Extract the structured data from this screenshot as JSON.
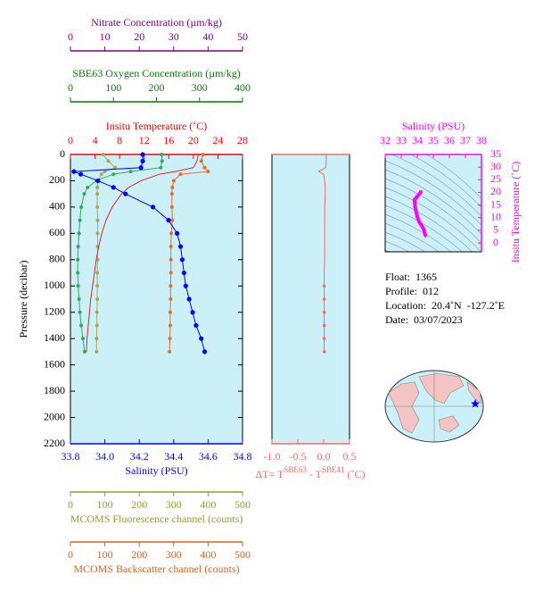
{
  "chart_data": [
    {
      "type": "line",
      "ylabel": "Pressure (decibar)",
      "ylim": [
        0,
        2200
      ],
      "yticks": [
        0,
        200,
        400,
        600,
        800,
        1000,
        1200,
        1400,
        1600,
        1800,
        2000,
        2200
      ],
      "y_reversed": true,
      "background": "#ccf0f8",
      "pressure": [
        0,
        50,
        100,
        130,
        150,
        200,
        250,
        300,
        400,
        500,
        600,
        700,
        800,
        900,
        1000,
        1100,
        1200,
        1300,
        1400,
        1500
      ],
      "x_axes": [
        {
          "label": "Nitrate Concentration (µm/kg)",
          "xlim": [
            0,
            50
          ],
          "xticks": [
            0,
            10,
            20,
            30,
            40,
            50
          ],
          "color": "#800080",
          "position": "top"
        },
        {
          "label": "SBE63 Oxygen Concentration (µm/kg)",
          "xlim": [
            0,
            400
          ],
          "xticks": [
            0,
            100,
            200,
            300,
            400
          ],
          "color": "#008000",
          "position": "top"
        },
        {
          "label": "Insitu Temperature (˚C)",
          "xlim": [
            0,
            28
          ],
          "xticks": [
            0,
            4,
            8,
            12,
            16,
            20,
            24,
            28
          ],
          "color": "#ff0000",
          "position": "top"
        },
        {
          "label": "Salinity (PSU)",
          "xlim": [
            33.8,
            34.8
          ],
          "xticks": [
            33.8,
            {
              "value": 34,
              "label": "34.0"
            },
            34.2,
            34.4,
            34.6,
            34.8
          ],
          "color": "#0000ff",
          "position": "bottom"
        },
        {
          "label": "MCOMS Fluorescence channel (counts)",
          "xlim": [
            0,
            500
          ],
          "xticks": [
            0,
            100,
            200,
            300,
            400,
            500
          ],
          "color": "#999933",
          "position": "bottom"
        },
        {
          "label": "MCOMS Backscatter channel (counts)",
          "xlim": [
            0,
            500
          ],
          "xticks": [
            0,
            100,
            200,
            300,
            400,
            500
          ],
          "color": "#e06020",
          "position": "bottom"
        }
      ],
      "series": [
        {
          "axis": 1,
          "color": "#33aa55",
          "markers": true,
          "values": [
            212,
            213,
            210,
            140,
            100,
            60,
            40,
            32,
            25,
            22,
            20,
            18,
            17,
            17,
            18,
            20,
            22,
            25,
            29,
            33
          ]
        },
        {
          "axis": 4,
          "color": "#aaaa55",
          "markers": true,
          "values": [
            95,
            110,
            130,
            100,
            90,
            80,
            78,
            78,
            78,
            79,
            79,
            79,
            79,
            78,
            78,
            78,
            77,
            77,
            76,
            76
          ]
        },
        {
          "axis": 5,
          "color": "#e07030",
          "markers": true,
          "values": [
            385,
            380,
            390,
            400,
            320,
            300,
            296,
            295,
            295,
            296,
            293,
            292,
            292,
            292,
            291,
            291,
            290,
            290,
            289,
            288
          ]
        },
        {
          "axis": 2,
          "color": "#dd2222",
          "markers": false,
          "values": [
            20.8,
            20.6,
            20,
            17,
            14.5,
            11.5,
            9.5,
            8.3,
            6.8,
            5.8,
            5.1,
            4.6,
            4.2,
            3.9,
            3.6,
            3.3,
            3.1,
            2.9,
            2.7,
            2.6
          ]
        },
        {
          "axis": 3,
          "color": "#0000ff",
          "markers": true,
          "values": [
            34.22,
            34.22,
            34.21,
            33.82,
            33.86,
            33.96,
            34.05,
            34.12,
            34.28,
            34.37,
            34.42,
            34.44,
            34.45,
            34.46,
            34.47,
            34.49,
            34.51,
            34.53,
            34.56,
            34.58
          ]
        }
      ]
    },
    {
      "type": "line",
      "xlabel_parts": [
        "ΔT= T",
        "SBE63",
        " - T",
        "SBE41",
        " (˚C)"
      ],
      "xlim": [
        -1,
        0.5
      ],
      "xticks": [
        {
          "value": -1,
          "label": "-1.0"
        },
        -0.5,
        {
          "value": 0,
          "label": "0.0"
        },
        0.5
      ],
      "color": "#ff6666",
      "values": [
        0.05,
        0.05,
        0.04,
        -0.1,
        0.0,
        0.02,
        0.03,
        0.03,
        0.02,
        0.02,
        0.02,
        0.02,
        0.02,
        0.01,
        0.01,
        0.01,
        0.01,
        0.01,
        0.01,
        0.01
      ]
    },
    {
      "type": "ts",
      "xlabel": "Salinity (PSU)",
      "xlim": [
        32,
        38
      ],
      "xticks": [
        32,
        33,
        34,
        35,
        36,
        37,
        38
      ],
      "ylabel": "Insitu Temperature (˚C)",
      "ylim": [
        -3.5,
        35
      ],
      "yticks": [
        0,
        5,
        10,
        15,
        20,
        25,
        30,
        35
      ],
      "color": "#ff00ff"
    }
  ],
  "info": [
    "Float:  1365",
    "Profile:  012",
    "Location:  20.4˚N  -127.2˚E",
    "Date:  03/07/2023"
  ]
}
